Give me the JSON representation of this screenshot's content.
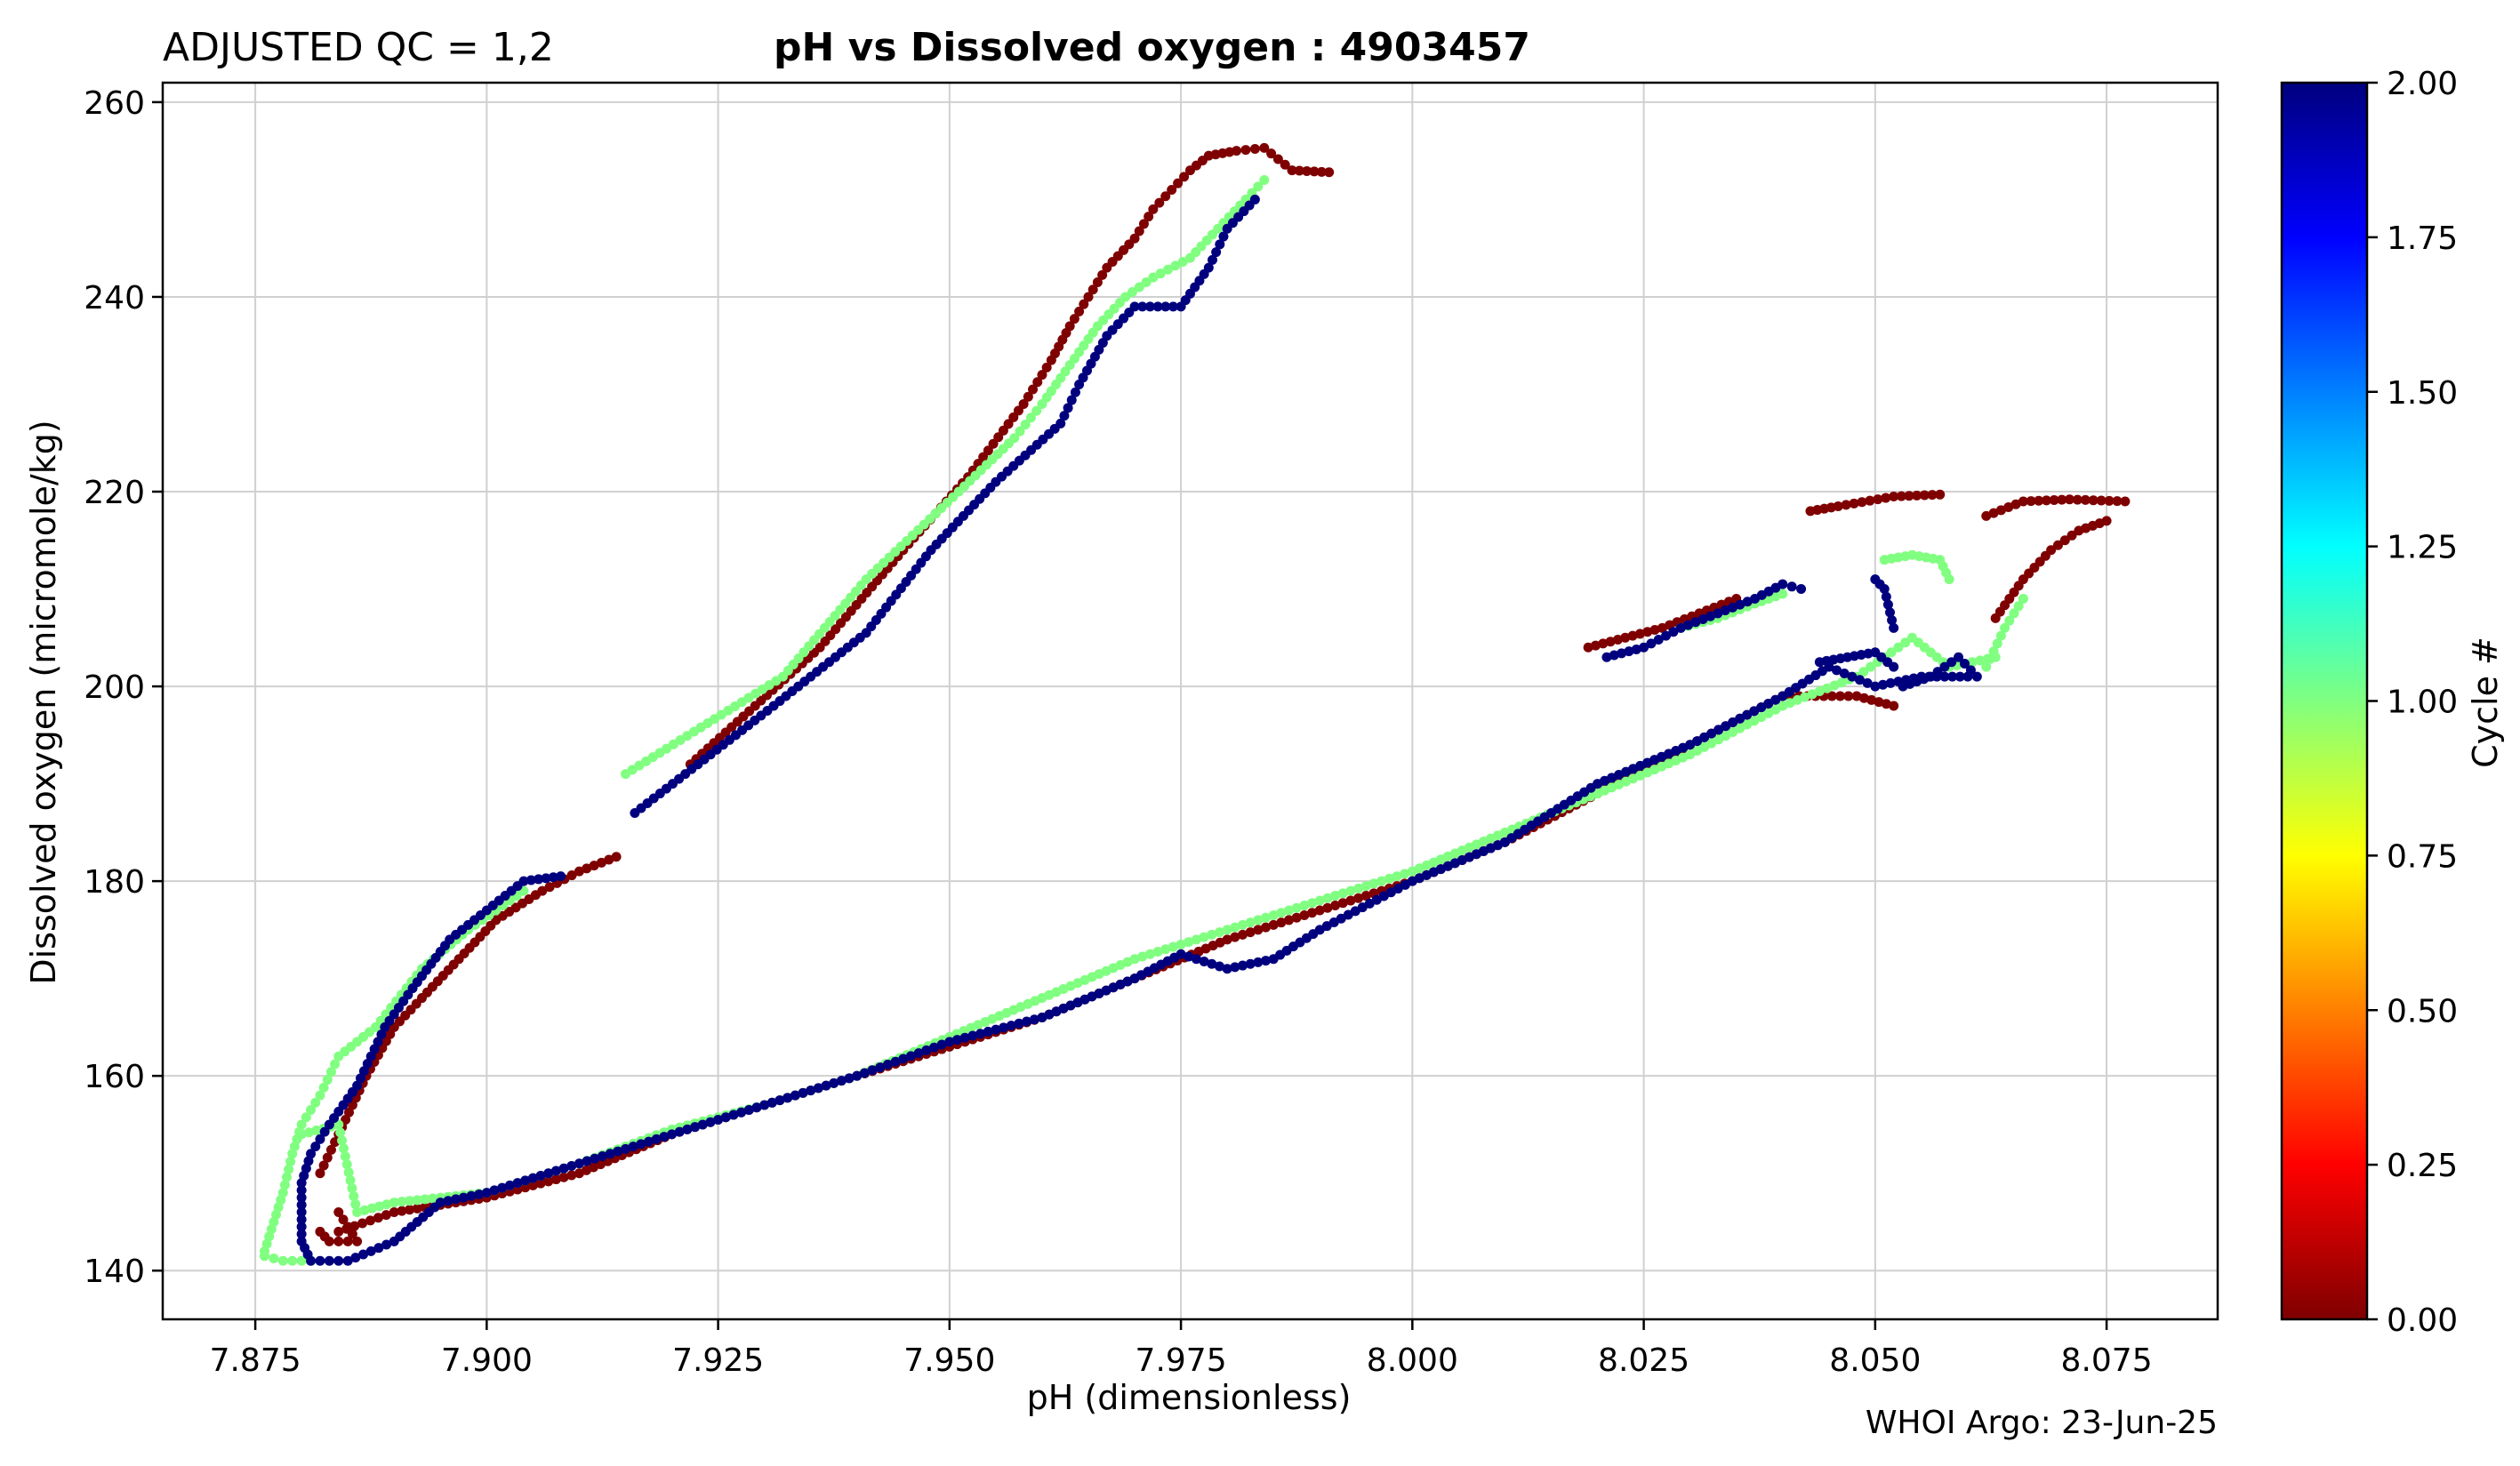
{
  "header": {
    "qc_label": "ADJUSTED QC = 1,2",
    "title": "pH vs Dissolved oxygen : 4903457",
    "credit": "WHOI Argo: 23-Jun-25"
  },
  "colorbar": {
    "label": "Cycle #",
    "min": 0,
    "max": 2,
    "ticks": [
      "0.00",
      "0.25",
      "0.50",
      "0.75",
      "1.00",
      "1.25",
      "1.50",
      "1.75",
      "2.00"
    ],
    "colormap": "jet",
    "colormap_stops": [
      "#7f0000",
      "#ff0000",
      "#ff8000",
      "#ffff00",
      "#80ff80",
      "#00ffff",
      "#0080ff",
      "#0000ff",
      "#00007f"
    ]
  },
  "chart_data": {
    "type": "scatter",
    "title": "pH vs Dissolved oxygen : 4903457",
    "xlabel": "pH  (dimensionless)",
    "ylabel": "Dissolved oxygen  (micromole/kg)",
    "xlim": [
      7.865,
      8.087
    ],
    "ylim": [
      135,
      262
    ],
    "x_ticks": [
      7.875,
      7.9,
      7.925,
      7.95,
      7.975,
      8.0,
      8.025,
      8.05,
      8.075
    ],
    "x_tick_labels": [
      "7.875",
      "7.900",
      "7.925",
      "7.950",
      "7.975",
      "8.000",
      "8.025",
      "8.050",
      "8.075"
    ],
    "y_ticks": [
      140,
      160,
      180,
      200,
      220,
      240,
      260
    ],
    "y_tick_labels": [
      "140",
      "160",
      "180",
      "200",
      "220",
      "240",
      "260"
    ],
    "grid": true,
    "color_encoding": "cycle number",
    "series": [
      {
        "cycle": 0,
        "color": "#7f0000",
        "segments": [
          [
            [
              7.882,
              144
            ],
            [
              7.883,
              143
            ],
            [
              7.886,
              143
            ],
            [
              7.884,
              146
            ]
          ],
          [
            [
              7.882,
              150
            ],
            [
              7.884,
              154
            ],
            [
              7.887,
              160
            ],
            [
              7.89,
              165
            ],
            [
              7.893,
              168
            ],
            [
              7.897,
              172
            ],
            [
              7.901,
              176
            ],
            [
              7.906,
              179
            ],
            [
              7.91,
              181
            ],
            [
              7.914,
              182.5
            ]
          ],
          [
            [
              7.884,
              144
            ],
            [
              7.89,
              146
            ],
            [
              7.9,
              147.5
            ],
            [
              7.91,
              150
            ],
            [
              7.92,
              154
            ],
            [
              7.93,
              157
            ],
            [
              7.94,
              160
            ],
            [
              7.95,
              163
            ],
            [
              7.96,
              166
            ],
            [
              7.97,
              170
            ],
            [
              7.98,
              174
            ],
            [
              7.99,
              177
            ],
            [
              8.0,
              180
            ],
            [
              8.01,
              184
            ],
            [
              8.02,
              189
            ],
            [
              8.03,
              194
            ],
            [
              8.04,
              199
            ],
            [
              8.048,
              199
            ],
            [
              8.052,
              198
            ]
          ],
          [
            [
              7.922,
              192
            ],
            [
              7.936,
              204
            ],
            [
              7.945,
              214
            ],
            [
              7.952,
              221.5
            ],
            [
              7.958,
              229
            ],
            [
              7.961,
              233.5
            ],
            [
              7.963,
              237
            ],
            [
              7.965,
              240
            ],
            [
              7.967,
              243
            ],
            [
              7.97,
              246
            ],
            [
              7.972,
              249
            ],
            [
              7.974,
              251
            ],
            [
              7.976,
              253
            ],
            [
              7.978,
              254.5
            ],
            [
              7.981,
              255
            ],
            [
              7.984,
              255.3
            ],
            [
              7.987,
              253
            ],
            [
              7.991,
              252.8
            ]
          ],
          [
            [
              8.019,
              204
            ],
            [
              8.023,
              205
            ],
            [
              8.027,
              206
            ],
            [
              8.031,
              207.5
            ],
            [
              8.035,
              209
            ]
          ],
          [
            [
              8.043,
              218
            ],
            [
              8.046,
              218.5
            ],
            [
              8.052,
              219.5
            ],
            [
              8.057,
              219.7
            ]
          ],
          [
            [
              8.062,
              217.5
            ],
            [
              8.066,
              219
            ],
            [
              8.071,
              219.2
            ],
            [
              8.077,
              219
            ]
          ],
          [
            [
              8.063,
              207
            ],
            [
              8.066,
              211
            ],
            [
              8.069,
              214
            ],
            [
              8.072,
              216
            ],
            [
              8.075,
              217
            ]
          ]
        ]
      },
      {
        "cycle": 1,
        "color": "#80ff80",
        "segments": [
          [
            [
              7.876,
              142
            ],
            [
              7.877,
              145
            ],
            [
              7.878,
              148
            ],
            [
              7.879,
              152
            ],
            [
              7.88,
              155
            ],
            [
              7.882,
              158
            ],
            [
              7.884,
              162
            ],
            [
              7.888,
              165
            ],
            [
              7.893,
              171
            ],
            [
              7.898,
              175
            ],
            [
              7.904,
              179
            ]
          ],
          [
            [
              7.876,
              141.5
            ],
            [
              7.878,
              141
            ],
            [
              7.881,
              141
            ]
          ],
          [
            [
              7.88,
              154
            ],
            [
              7.884,
              155
            ],
            [
              7.886,
              146
            ],
            [
              7.89,
              147
            ],
            [
              7.9,
              148
            ],
            [
              7.91,
              151
            ],
            [
              7.92,
              154.5
            ],
            [
              7.93,
              157
            ],
            [
              7.94,
              160
            ],
            [
              7.95,
              164
            ],
            [
              7.96,
              168
            ],
            [
              7.97,
              172
            ],
            [
              7.98,
              175
            ],
            [
              7.99,
              178
            ],
            [
              8.0,
              181
            ],
            [
              8.01,
              185
            ],
            [
              8.02,
              189
            ],
            [
              8.03,
              193
            ],
            [
              8.04,
              198
            ],
            [
              8.048,
              201
            ],
            [
              8.054,
              205
            ],
            [
              8.058,
              202
            ],
            [
              8.063,
              203
            ]
          ],
          [
            [
              7.915,
              191
            ],
            [
              7.932,
              201
            ],
            [
              7.941,
              211
            ],
            [
              7.951,
              220
            ],
            [
              7.957,
              225.5
            ],
            [
              7.96,
              229
            ],
            [
              7.963,
              233
            ],
            [
              7.966,
              237
            ],
            [
              7.969,
              240
            ],
            [
              7.972,
              242
            ],
            [
              7.976,
              244
            ],
            [
              7.979,
              247
            ],
            [
              7.982,
              250
            ],
            [
              7.984,
              252
            ]
          ],
          [
            [
              8.029,
              206
            ],
            [
              8.033,
              207
            ],
            [
              8.037,
              208.5
            ],
            [
              8.04,
              209.5
            ]
          ],
          [
            [
              8.051,
              213
            ],
            [
              8.054,
              213.5
            ],
            [
              8.057,
              213
            ],
            [
              8.058,
              211
            ]
          ],
          [
            [
              8.062,
              202
            ],
            [
              8.064,
              206
            ],
            [
              8.066,
              209
            ]
          ]
        ]
      },
      {
        "cycle": 2,
        "color": "#00007f",
        "segments": [
          [
            [
              7.881,
              141
            ],
            [
              7.88,
              143
            ],
            [
              7.88,
              146
            ],
            [
              7.88,
              149
            ],
            [
              7.881,
              152
            ],
            [
              7.883,
              155
            ],
            [
              7.886,
              159
            ],
            [
              7.889,
              165
            ],
            [
              7.892,
              169
            ],
            [
              7.896,
              174
            ],
            [
              7.9,
              177
            ],
            [
              7.904,
              180
            ],
            [
              7.908,
              180.5
            ]
          ],
          [
            [
              7.882,
              141
            ],
            [
              7.885,
              141
            ],
            [
              7.89,
              143
            ],
            [
              7.895,
              147
            ],
            [
              7.9,
              148
            ],
            [
              7.91,
              151
            ],
            [
              7.92,
              154
            ],
            [
              7.93,
              157
            ],
            [
              7.94,
              160
            ],
            [
              7.95,
              163.5
            ],
            [
              7.96,
              166
            ],
            [
              7.97,
              170
            ],
            [
              7.975,
              172.5
            ],
            [
              7.98,
              171
            ],
            [
              7.985,
              172
            ],
            [
              7.99,
              175
            ],
            [
              8.0,
              180
            ],
            [
              8.01,
              184
            ],
            [
              8.02,
              190
            ],
            [
              8.03,
              194
            ],
            [
              8.04,
              199
            ],
            [
              8.045,
              202
            ],
            [
              8.05,
              200
            ],
            [
              8.055,
              201
            ],
            [
              8.06,
              201
            ]
          ],
          [
            [
              7.916,
              187
            ],
            [
              7.931,
              198
            ],
            [
              7.941,
              205.5
            ],
            [
              7.948,
              214
            ],
            [
              7.955,
              221
            ],
            [
              7.962,
              227
            ],
            [
              7.964,
              231
            ],
            [
              7.967,
              236
            ],
            [
              7.97,
              239
            ],
            [
              7.975,
              239
            ],
            [
              7.978,
              243
            ],
            [
              7.98,
              247
            ],
            [
              7.983,
              250
            ]
          ],
          [
            [
              8.021,
              203
            ],
            [
              8.025,
              204
            ],
            [
              8.029,
              206
            ],
            [
              8.033,
              207.5
            ],
            [
              8.037,
              209
            ],
            [
              8.04,
              210.5
            ],
            [
              8.042,
              210
            ]
          ],
          [
            [
              8.044,
              202.5
            ],
            [
              8.047,
              203
            ],
            [
              8.05,
              203.5
            ],
            [
              8.052,
              202
            ]
          ],
          [
            [
              8.05,
              211
            ],
            [
              8.051,
              210
            ],
            [
              8.052,
              206
            ]
          ],
          [
            [
              8.053,
              200
            ],
            [
              8.056,
              201
            ],
            [
              8.059,
              203
            ],
            [
              8.061,
              201
            ]
          ]
        ]
      }
    ]
  }
}
